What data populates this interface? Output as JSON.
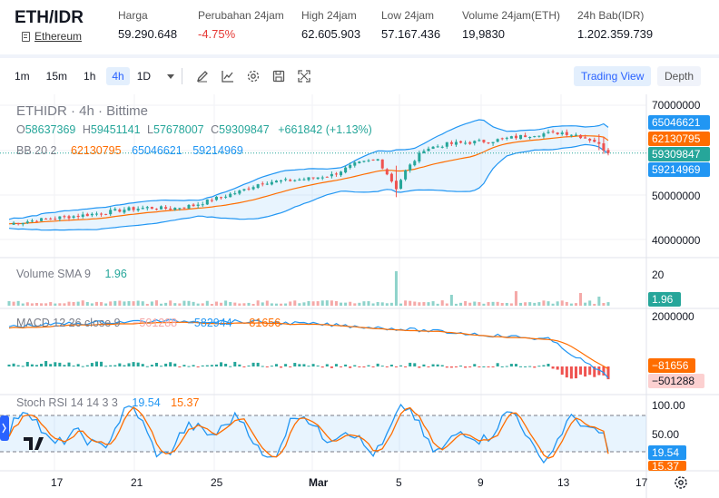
{
  "header": {
    "pair": "ETH/IDR",
    "pair_link": "Ethereum",
    "stats": [
      {
        "label": "Harga",
        "value": "59.290.648",
        "negative": false
      },
      {
        "label": "Perubahan 24jam",
        "value": "-4.75%",
        "negative": true
      },
      {
        "label": "High 24jam",
        "value": "62.605.903",
        "negative": false
      },
      {
        "label": "Low 24jam",
        "value": "57.167.436",
        "negative": false
      },
      {
        "label": "Volume 24jam(ETH)",
        "value": "19,9830",
        "negative": false
      },
      {
        "label": "24h Bab(IDR)",
        "value": "1.202.359.739",
        "negative": false
      }
    ]
  },
  "toolbar": {
    "timeframes": [
      "1m",
      "15m",
      "1h",
      "4h"
    ],
    "active_timeframe": "4h",
    "dropdown": "1D",
    "icons": [
      "pencil-icon",
      "line-chart-icon",
      "gear-icon",
      "save-icon",
      "fullscreen-icon"
    ],
    "trading_view": "Trading View",
    "depth": "Depth"
  },
  "legend": {
    "symbol": "ETHIDR · 4h · Bittime",
    "o_label": "O",
    "o": "58637369",
    "h_label": "H",
    "h": "59451141",
    "l_label": "L",
    "l": "57678007",
    "c_label": "C",
    "c": "59309847",
    "change": "+661842 (+1.13%)",
    "bb_label": "BB 20 2",
    "bb_basis": "62130795",
    "bb_upper": "65046621",
    "bb_lower": "59214969"
  },
  "price_axis": {
    "ticks": [
      "70000000",
      "50000000",
      "40000000"
    ],
    "badges": [
      {
        "text": "65046621",
        "color": "#2196f3"
      },
      {
        "text": "62130795",
        "color": "#ff6d00"
      },
      {
        "text": "59309847",
        "color": "#26a69a"
      },
      {
        "text": "59214969",
        "color": "#2196f3"
      }
    ]
  },
  "volume": {
    "label": "Volume SMA 9",
    "value": "1.96",
    "tick": "20",
    "badge": "1.96"
  },
  "macd": {
    "label": "MACD 12 26 close 9",
    "hist": "−501288",
    "macd": "−582944",
    "signal": "−81656",
    "tick": "2000000",
    "badge_signal": "−81656",
    "badge_hist": "−501288"
  },
  "stoch": {
    "label": "Stoch RSI 14 14 3 3",
    "k": "19.54",
    "d": "15.37",
    "ticks": [
      "100.00",
      "50.00"
    ],
    "badge_k": "19.54",
    "badge_d": "15.37"
  },
  "time_axis": [
    "17",
    "21",
    "25",
    "Mar",
    "5",
    "9",
    "13",
    "17"
  ],
  "colors": {
    "up": "#26a69a",
    "down": "#ef5350",
    "bb": "#2196f3",
    "basis": "#ff6d00",
    "accent": "#2962ff"
  },
  "chart_data": {
    "type": "candlestick",
    "title": "ETHIDR · 4h · Bittime",
    "x_ticks": [
      "17",
      "21",
      "25",
      "Mar",
      "5",
      "9",
      "13",
      "17"
    ],
    "price_ticks": [
      70000000,
      50000000,
      40000000
    ],
    "close_path": [
      [
        0,
        43500000
      ],
      [
        5,
        44200000
      ],
      [
        10,
        44800000
      ],
      [
        15,
        45300000
      ],
      [
        20,
        45900000
      ],
      [
        25,
        46700000
      ],
      [
        30,
        47100000
      ],
      [
        35,
        46900000
      ],
      [
        40,
        47600000
      ],
      [
        45,
        49200000
      ],
      [
        50,
        50700000
      ],
      [
        55,
        52800000
      ],
      [
        60,
        53100000
      ],
      [
        65,
        53600000
      ],
      [
        70,
        54400000
      ],
      [
        75,
        56800000
      ],
      [
        80,
        57900000
      ],
      [
        84,
        51500000
      ],
      [
        86,
        55300000
      ],
      [
        90,
        60200000
      ],
      [
        95,
        61300000
      ],
      [
        100,
        61700000
      ],
      [
        105,
        62100000
      ],
      [
        110,
        62900000
      ],
      [
        115,
        63600000
      ],
      [
        120,
        63900000
      ],
      [
        123,
        63400000
      ],
      [
        127,
        62000000
      ],
      [
        130,
        59309847
      ]
    ],
    "bb_at_last": {
      "upper": 65046621,
      "basis": 62130795,
      "lower": 59214969
    },
    "last_close": 59309847
  }
}
